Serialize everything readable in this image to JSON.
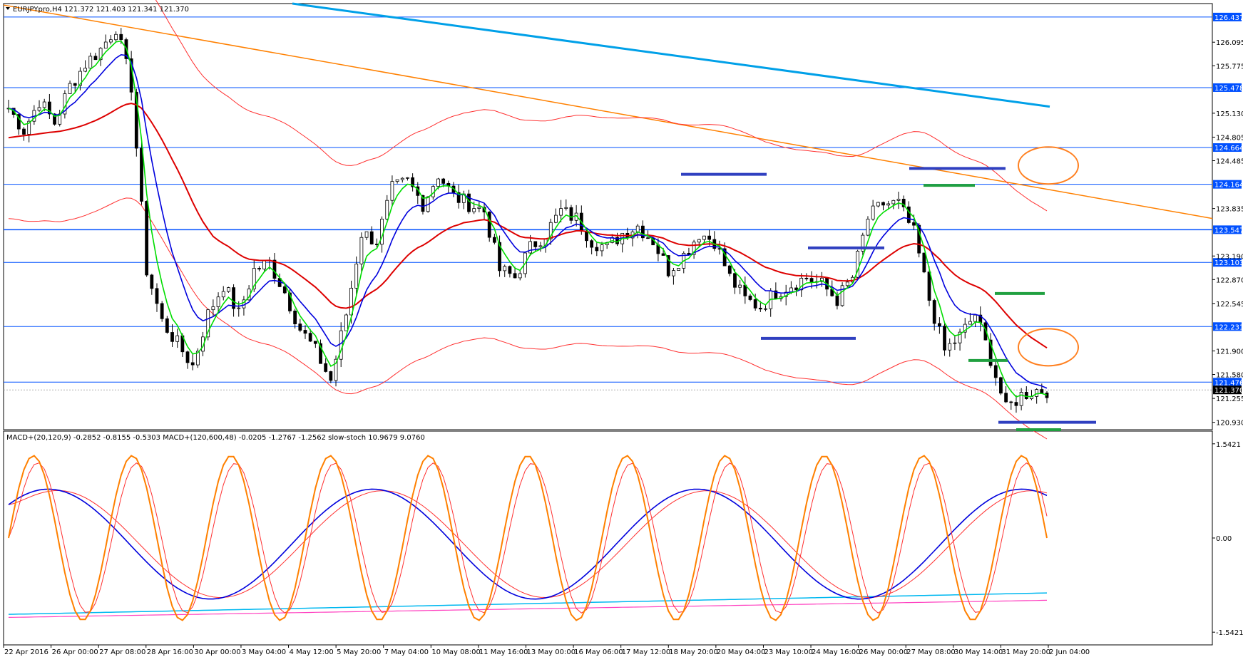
{
  "header": {
    "symbol_line": "EURJPYpro,H4  121.372 121.403 121.341 121.370",
    "indicator_line": "MACD+(20,120,9) -0.2852 -0.8155 -0.5303  MACD+(120,600,48) -0.0205 -1.2767 -1.2562  slow-stoch 10.9679 9.0760"
  },
  "colors": {
    "bull_candle": "#ffffff",
    "bear_candle": "#000000",
    "ema_fast": "#00dd00",
    "ema_mid": "#0000dd",
    "ema_slow": "#dd0000",
    "envelope": "#ff3030",
    "trendline_orange": "#ff8000",
    "trendline_blue": "#00a0e8",
    "level_line": "#0050ff",
    "marker_blue": "#3040c0",
    "marker_green": "#20a040",
    "circle": "#ff8020",
    "stoch": "#ff8000",
    "stoch_signal": "#ff3030"
  },
  "chart_data": {
    "type": "line",
    "price_axis": {
      "min": 120.83,
      "max": 126.62,
      "ticks": [
        "126.095",
        "125.775",
        "125.130",
        "124.805",
        "124.485",
        "123.835",
        "123.190",
        "122.870",
        "122.545",
        "121.900",
        "121.580",
        "121.255",
        "120.930"
      ],
      "highlighted_levels": [
        "126.437",
        "125.478",
        "124.664",
        "124.164",
        "123.547",
        "123.103",
        "122.231",
        "121.476"
      ],
      "current_price": "121.370"
    },
    "indicator_axis": {
      "ticks": [
        "1.5421",
        "0.00",
        "-1.5421"
      ]
    },
    "time_labels": [
      "22 Apr 2016",
      "26 Apr 00:00",
      "27 Apr 08:00",
      "28 Apr 16:00",
      "30 Apr 00:00",
      "3 May 04:00",
      "4 May 12:00",
      "5 May 20:00",
      "7 May 04:00",
      "10 May 08:00",
      "11 May 16:00",
      "13 May 00:00",
      "16 May 06:00",
      "17 May 12:00",
      "18 May 20:00",
      "20 May 04:00",
      "23 May 10:00",
      "24 May 16:00",
      "26 May 00:00",
      "27 May 08:00",
      "30 May 14:00",
      "31 May 20:00",
      "2 Jun 04:00"
    ],
    "candle_close_path": [
      125.2,
      124.9,
      125.3,
      125.0,
      125.5,
      125.8,
      126.0,
      126.3,
      125.5,
      123.0,
      122.3,
      122.0,
      121.7,
      122.4,
      122.8,
      122.4,
      123.0,
      123.1,
      122.7,
      122.2,
      121.9,
      121.5,
      122.4,
      123.5,
      123.4,
      124.1,
      124.2,
      123.9,
      124.3,
      124.0,
      123.9,
      123.8,
      123.0,
      122.9,
      123.3,
      123.5,
      123.8,
      123.7,
      123.4,
      123.3,
      123.5,
      123.6,
      123.4,
      123.0,
      123.2,
      123.5,
      123.4,
      122.9,
      122.6,
      122.5,
      122.7,
      122.8,
      122.9,
      122.8,
      122.6,
      122.9,
      123.7,
      123.9,
      123.9,
      123.5,
      122.6,
      121.9,
      122.1,
      122.4,
      121.8,
      121.1,
      121.3,
      121.37
    ],
    "levels_marked": {
      "blue_segments": [
        124.3,
        124.38,
        123.3,
        122.07,
        120.93
      ],
      "green_segments": [
        124.15,
        122.68,
        121.77,
        120.83
      ]
    }
  }
}
